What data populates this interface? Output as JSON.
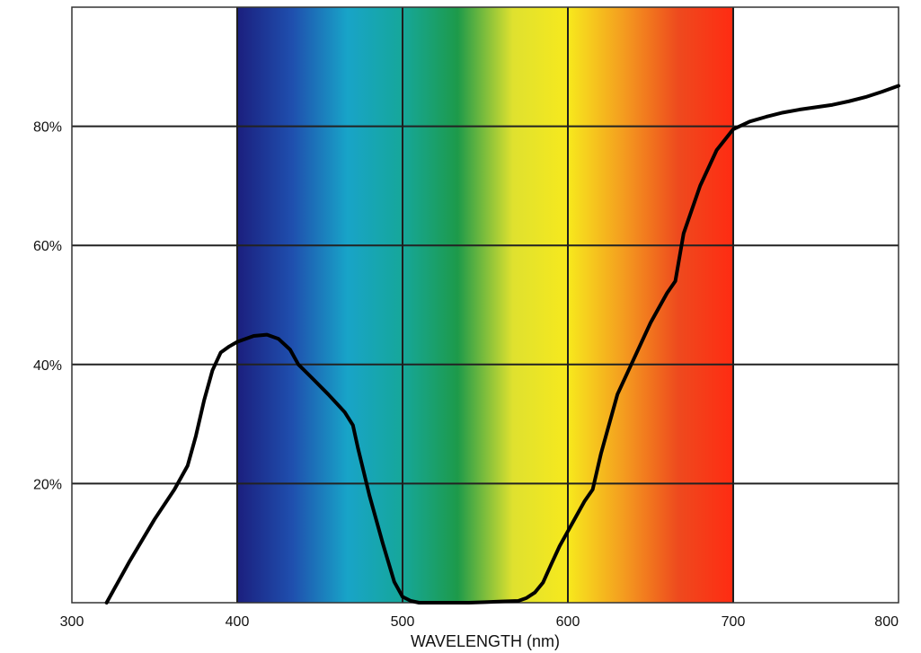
{
  "chart_data": {
    "type": "line",
    "title": "",
    "xlabel": "WAVELENGTH (nm)",
    "ylabel": "",
    "xlim": [
      300,
      800
    ],
    "ylim": [
      0,
      100
    ],
    "grid": true,
    "x_ticks": [
      300,
      400,
      500,
      600,
      700,
      800
    ],
    "x_tick_labels": [
      "300",
      "400",
      "500",
      "600",
      "700",
      "800"
    ],
    "y_ticks": [
      20,
      40,
      60,
      80
    ],
    "y_tick_labels": [
      "20%",
      "40%",
      "60%",
      "80%"
    ],
    "spectrum_band": [
      400,
      700
    ],
    "spectrum_colors": [
      "#1b1f7e",
      "#1f4fae",
      "#18a4c8",
      "#16a79a",
      "#1d9a4a",
      "#dfe12f",
      "#f7e91d",
      "#f49d1f",
      "#ee4a1e",
      "#ff2b12"
    ],
    "series": [
      {
        "name": "",
        "color": "#000000",
        "x": [
          321,
          335,
          350,
          362,
          370,
          375,
          380,
          385,
          390,
          395,
          400,
          410,
          418,
          425,
          432,
          437,
          445,
          455,
          465,
          470,
          473,
          480,
          488,
          495,
          500,
          505,
          510,
          520,
          530,
          540,
          550,
          560,
          570,
          575,
          580,
          585,
          590,
          595,
          600,
          605,
          610,
          615,
          620,
          630,
          640,
          650,
          660,
          665,
          670,
          680,
          690,
          700,
          710,
          720,
          730,
          740,
          750,
          760,
          770,
          780,
          790,
          800
        ],
        "y": [
          0,
          7,
          14,
          19,
          23,
          28,
          34,
          39,
          42,
          43,
          43.8,
          44.8,
          45,
          44.3,
          42.5,
          40,
          37.8,
          35,
          32,
          29.8,
          26,
          18,
          10,
          3.5,
          1,
          0.3,
          0,
          0,
          0,
          0,
          0.1,
          0.2,
          0.3,
          0.8,
          1.7,
          3.4,
          6.5,
          9.5,
          12,
          14.5,
          17,
          19,
          25,
          35,
          41,
          47,
          52,
          54,
          62,
          70,
          76,
          79.5,
          80.8,
          81.6,
          82.3,
          82.8,
          83.2,
          83.6,
          84.2,
          84.9,
          85.8,
          86.8
        ]
      }
    ]
  }
}
